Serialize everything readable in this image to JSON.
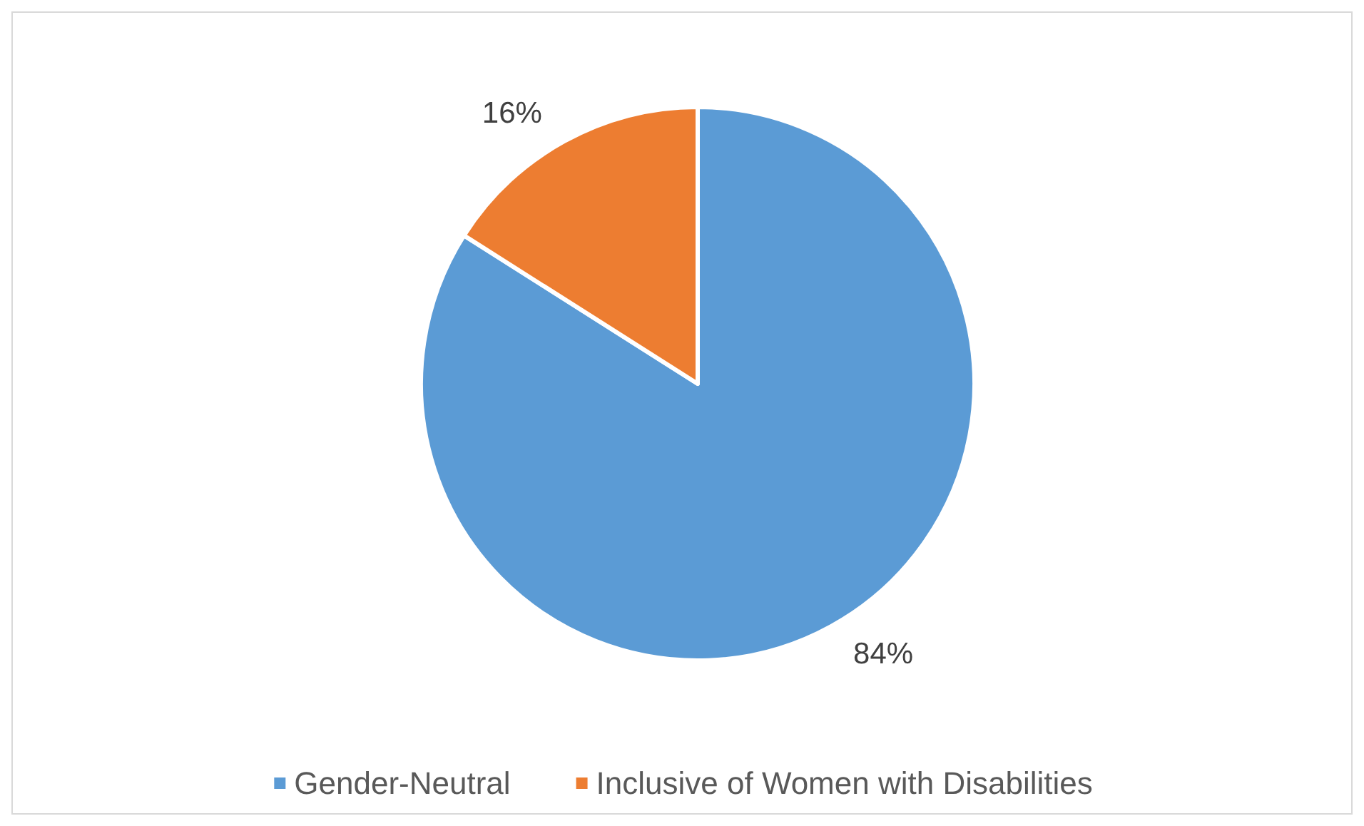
{
  "chart_data": {
    "type": "pie",
    "categories": [
      "Gender-Neutral",
      "Inclusive of Women with Disabilities"
    ],
    "values": [
      84,
      16
    ],
    "value_labels": [
      "84%",
      "16%"
    ],
    "colors": [
      "#5b9bd5",
      "#ed7d31"
    ],
    "legend": "bottom"
  }
}
